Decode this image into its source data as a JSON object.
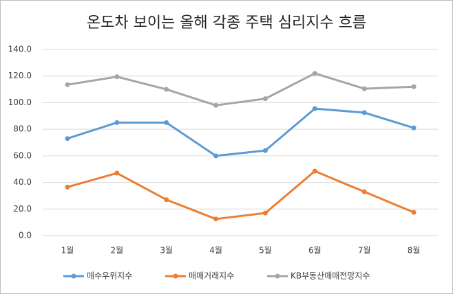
{
  "chart_data": {
    "type": "line",
    "title": "온도차 보이는 올해 각종 주택 심리지수 흐름",
    "categories": [
      "1월",
      "2월",
      "3월",
      "4월",
      "5월",
      "6월",
      "7월",
      "8월"
    ],
    "series": [
      {
        "name": "매수우위지수",
        "color": "#5b9bd5",
        "values": [
          73,
          85,
          85,
          60,
          64,
          95.5,
          92.5,
          81
        ]
      },
      {
        "name": "매매거래지수",
        "color": "#ed7d31",
        "values": [
          36.5,
          47,
          27,
          12.5,
          17,
          48.5,
          33,
          17.5
        ]
      },
      {
        "name": "KB부동산매매전망지수",
        "color": "#a5a5a5",
        "values": [
          113.5,
          119.5,
          110,
          98,
          103,
          122,
          110.5,
          112
        ]
      }
    ],
    "ylim": [
      0,
      140
    ],
    "yticks": [
      {
        "value": 0,
        "label": "0.0"
      },
      {
        "value": 20,
        "label": "20.0"
      },
      {
        "value": 40,
        "label": "40.0"
      },
      {
        "value": 60,
        "label": "60.0"
      },
      {
        "value": 80,
        "label": "80.0"
      },
      {
        "value": 100,
        "label": "100.0"
      },
      {
        "value": 120,
        "label": "120.0"
      },
      {
        "value": 140,
        "label": "140.0"
      }
    ],
    "grid": true,
    "legend": "bottom"
  }
}
